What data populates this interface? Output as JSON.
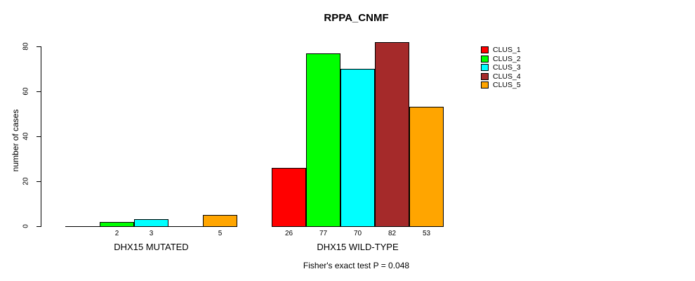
{
  "chart_data": {
    "type": "bar",
    "title": "RPPA_CNMF",
    "ylabel": "number of cases",
    "xlabel": "",
    "yticks": [
      0,
      20,
      40,
      60,
      80
    ],
    "ylim": [
      0,
      82
    ],
    "grid": false,
    "legend_position": "right",
    "series": [
      "CLUS_1",
      "CLUS_2",
      "CLUS_3",
      "CLUS_4",
      "CLUS_5"
    ],
    "colors": [
      "#FF0000",
      "#00FF00",
      "#00FFFF",
      "#A52A2A",
      "#FFA500"
    ],
    "groups": [
      {
        "label": "DHX15 MUTATED",
        "values": [
          0,
          2,
          3,
          0,
          5
        ],
        "bar_labels": [
          "",
          "2",
          "3",
          "",
          "5"
        ]
      },
      {
        "label": "DHX15 WILD-TYPE",
        "values": [
          26,
          77,
          70,
          82,
          53
        ],
        "bar_labels": [
          "26",
          "77",
          "70",
          "82",
          "53"
        ]
      }
    ],
    "annotation": "Fisher's exact test P = 0.048"
  }
}
